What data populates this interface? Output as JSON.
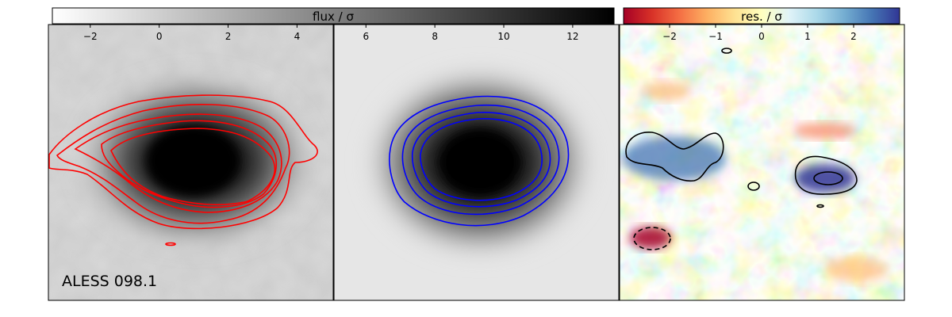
{
  "colorbars": [
    {
      "label": "flux / σ",
      "cmap": "gray_r",
      "range": [
        -3.1,
        13.2
      ],
      "ticks": [
        -2,
        0,
        2,
        4,
        6,
        8,
        10,
        12
      ]
    },
    {
      "label": "res. / σ",
      "cmap": "RdYlBu",
      "range": [
        -3.0,
        3.0
      ],
      "ticks": [
        -2,
        -1,
        0,
        1,
        2
      ]
    }
  ],
  "panels": [
    {
      "name": "observed",
      "image": "grayscale",
      "contour_color": "#ff0000",
      "contour_levels": 5
    },
    {
      "name": "model",
      "image": "grayscale",
      "contour_color": "#0000ff",
      "contour_levels": 5
    },
    {
      "name": "residual",
      "image": "RdYlBu",
      "contour_color": "#000000",
      "contour_levels": 2
    }
  ],
  "source_name": "ALESS 098.1"
}
